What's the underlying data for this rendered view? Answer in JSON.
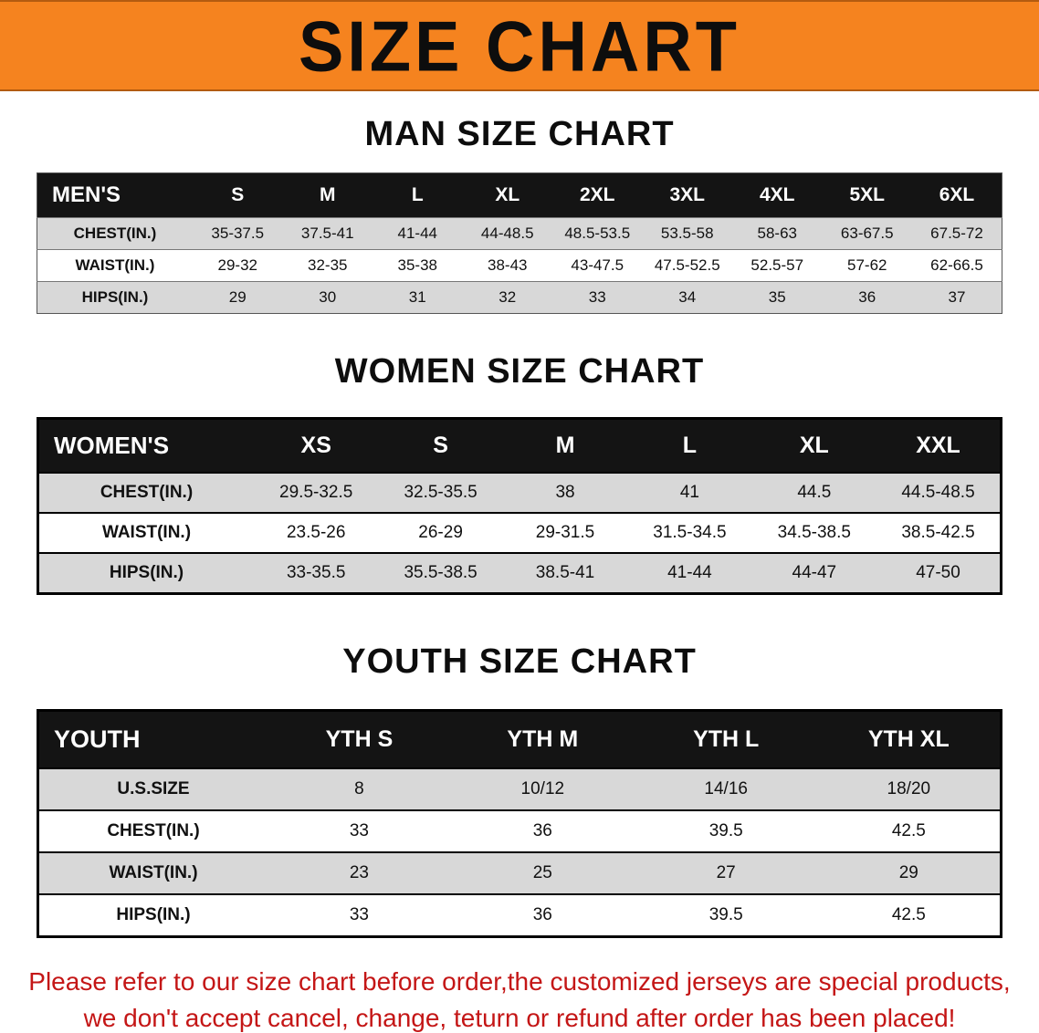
{
  "banner": {
    "title": "SIZE CHART"
  },
  "men": {
    "heading": "MAN SIZE CHART",
    "table": {
      "headers": [
        "MEN'S",
        "S",
        "M",
        "L",
        "XL",
        "2XL",
        "3XL",
        "4XL",
        "5XL",
        "6XL"
      ],
      "rows": [
        [
          "CHEST(IN.)",
          "35-37.5",
          "37.5-41",
          "41-44",
          "44-48.5",
          "48.5-53.5",
          "53.5-58",
          "58-63",
          "63-67.5",
          "67.5-72"
        ],
        [
          "WAIST(IN.)",
          "29-32",
          "32-35",
          "35-38",
          "38-43",
          "43-47.5",
          "47.5-52.5",
          "52.5-57",
          "57-62",
          "62-66.5"
        ],
        [
          "HIPS(IN.)",
          "29",
          "30",
          "31",
          "32",
          "33",
          "34",
          "35",
          "36",
          "37"
        ]
      ]
    }
  },
  "women": {
    "heading": "WOMEN SIZE CHART",
    "table": {
      "headers": [
        "WOMEN'S",
        "XS",
        "S",
        "M",
        "L",
        "XL",
        "XXL"
      ],
      "rows": [
        [
          "CHEST(IN.)",
          "29.5-32.5",
          "32.5-35.5",
          "38",
          "41",
          "44.5",
          "44.5-48.5"
        ],
        [
          "WAIST(IN.)",
          "23.5-26",
          "26-29",
          "29-31.5",
          "31.5-34.5",
          "34.5-38.5",
          "38.5-42.5"
        ],
        [
          "HIPS(IN.)",
          "33-35.5",
          "35.5-38.5",
          "38.5-41",
          "41-44",
          "44-47",
          "47-50"
        ]
      ]
    }
  },
  "youth": {
    "heading": "YOUTH SIZE CHART",
    "table": {
      "headers": [
        "YOUTH",
        "YTH S",
        "YTH M",
        "YTH L",
        "YTH XL"
      ],
      "rows": [
        [
          "U.S.SIZE",
          "8",
          "10/12",
          "14/16",
          "18/20"
        ],
        [
          "CHEST(IN.)",
          "33",
          "36",
          "39.5",
          "42.5"
        ],
        [
          "WAIST(IN.)",
          "23",
          "25",
          "27",
          "29"
        ],
        [
          "HIPS(IN.)",
          "33",
          "36",
          "39.5",
          "42.5"
        ]
      ]
    }
  },
  "footer": {
    "line1": "Please refer to our size chart before order,the customized jerseys are special products,",
    "line2": "we don't accept cancel, change, teturn or refund after order has been placed!"
  },
  "colors": {
    "banner_bg": "#f5831f",
    "table_header_bg": "#141414",
    "row_stripe": "#d8d8d8",
    "footer_text": "#c41616"
  }
}
